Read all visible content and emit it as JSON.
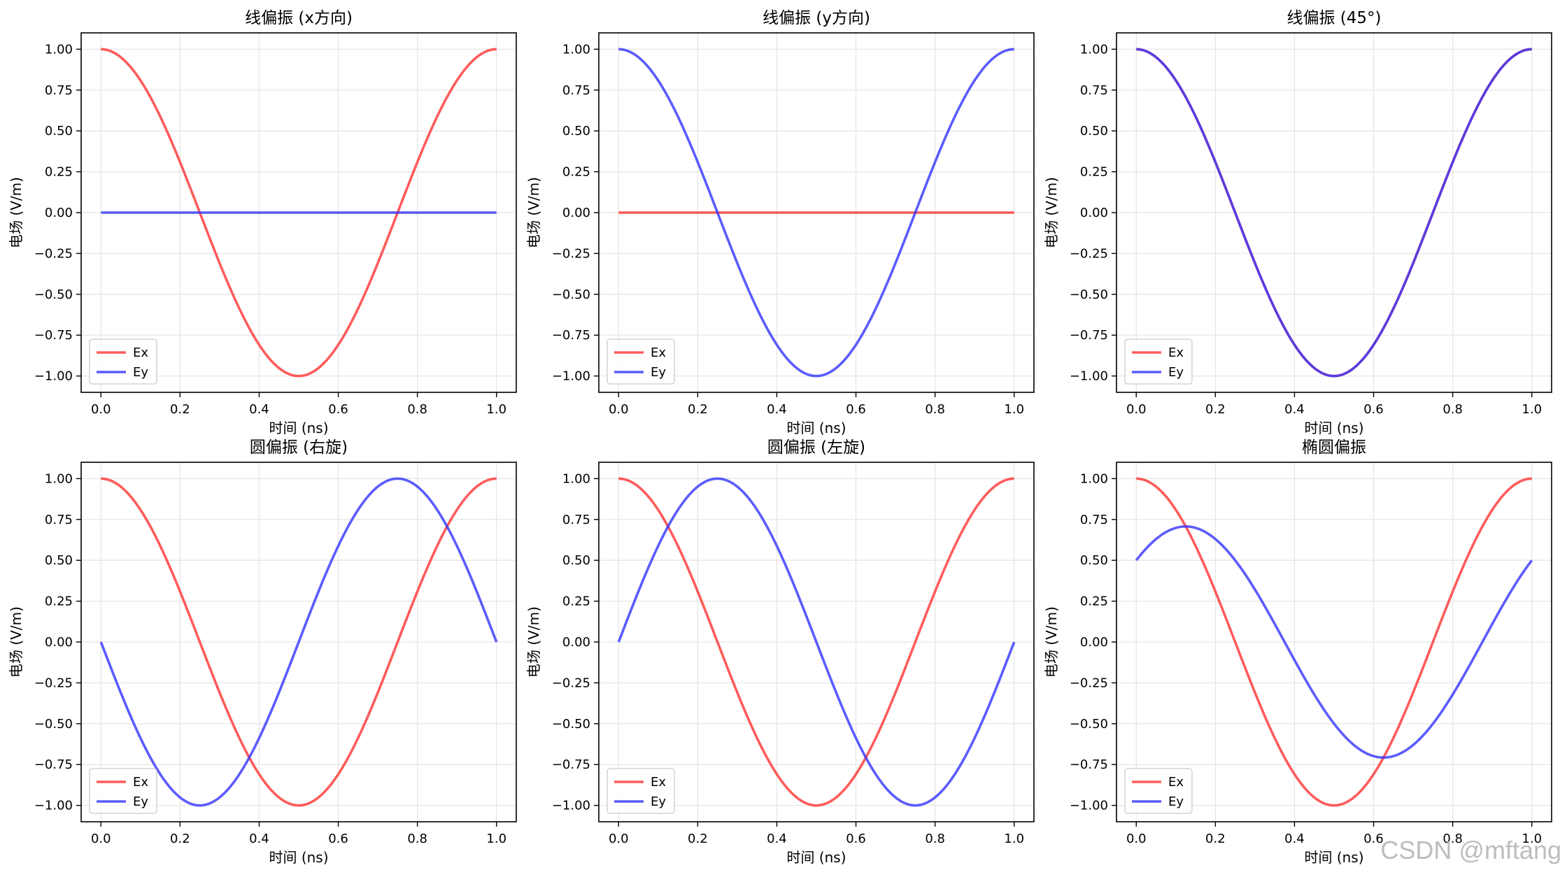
{
  "watermark": "CSDN @mftang",
  "colors": {
    "ex": "#ff3333",
    "ey": "#3333ff"
  },
  "chart_data": [
    {
      "type": "line",
      "title": "线偏振 (x方向)",
      "xlabel": "时间 (ns)",
      "ylabel": "电场 (V/m)",
      "xlim": [
        -0.05,
        1.05
      ],
      "ylim": [
        -1.1,
        1.1
      ],
      "xticks": [
        "0.0",
        "0.2",
        "0.4",
        "0.6",
        "0.8",
        "1.0"
      ],
      "yticks": [
        "1.00",
        "0.75",
        "0.50",
        "0.25",
        "0.00",
        "−0.25",
        "−0.50",
        "−0.75",
        "−1.00"
      ],
      "grid": true,
      "legend": "lower-left",
      "series": [
        {
          "name": "Ex",
          "color": "#ff3333",
          "amplitude": 1.0,
          "phase_deg": 0,
          "x_range": [
            0,
            1
          ],
          "period_ns": 1
        },
        {
          "name": "Ey",
          "color": "#3333ff",
          "amplitude": 0.0,
          "phase_deg": 0,
          "x_range": [
            0,
            1
          ],
          "period_ns": 1
        }
      ]
    },
    {
      "type": "line",
      "title": "线偏振 (y方向)",
      "xlabel": "时间 (ns)",
      "ylabel": "电场 (V/m)",
      "xlim": [
        -0.05,
        1.05
      ],
      "ylim": [
        -1.1,
        1.1
      ],
      "xticks": [
        "0.0",
        "0.2",
        "0.4",
        "0.6",
        "0.8",
        "1.0"
      ],
      "yticks": [
        "1.00",
        "0.75",
        "0.50",
        "0.25",
        "0.00",
        "−0.25",
        "−0.50",
        "−0.75",
        "−1.00"
      ],
      "grid": true,
      "legend": "lower-left",
      "series": [
        {
          "name": "Ex",
          "color": "#ff3333",
          "amplitude": 0.0,
          "phase_deg": 0,
          "x_range": [
            0,
            1
          ],
          "period_ns": 1
        },
        {
          "name": "Ey",
          "color": "#3333ff",
          "amplitude": 1.0,
          "phase_deg": 0,
          "x_range": [
            0,
            1
          ],
          "period_ns": 1
        }
      ]
    },
    {
      "type": "line",
      "title": "线偏振 (45°)",
      "xlabel": "时间 (ns)",
      "ylabel": "电场 (V/m)",
      "xlim": [
        -0.05,
        1.05
      ],
      "ylim": [
        -1.1,
        1.1
      ],
      "xticks": [
        "0.0",
        "0.2",
        "0.4",
        "0.6",
        "0.8",
        "1.0"
      ],
      "yticks": [
        "1.00",
        "0.75",
        "0.50",
        "0.25",
        "0.00",
        "−0.25",
        "−0.50",
        "−0.75",
        "−1.00"
      ],
      "grid": true,
      "legend": "lower-left",
      "series": [
        {
          "name": "Ex",
          "color": "#ff3333",
          "amplitude": 1.0,
          "phase_deg": 0,
          "x_range": [
            0,
            1
          ],
          "period_ns": 1
        },
        {
          "name": "Ey",
          "color": "#3333ff",
          "amplitude": 1.0,
          "phase_deg": 0,
          "x_range": [
            0,
            1
          ],
          "period_ns": 1
        }
      ]
    },
    {
      "type": "line",
      "title": "圆偏振 (右旋)",
      "xlabel": "时间 (ns)",
      "ylabel": "电场 (V/m)",
      "xlim": [
        -0.05,
        1.05
      ],
      "ylim": [
        -1.1,
        1.1
      ],
      "xticks": [
        "0.0",
        "0.2",
        "0.4",
        "0.6",
        "0.8",
        "1.0"
      ],
      "yticks": [
        "1.00",
        "0.75",
        "0.50",
        "0.25",
        "0.00",
        "−0.25",
        "−0.50",
        "−0.75",
        "−1.00"
      ],
      "grid": true,
      "legend": "lower-left",
      "series": [
        {
          "name": "Ex",
          "color": "#ff3333",
          "amplitude": 1.0,
          "phase_deg": 0,
          "x_range": [
            0,
            1
          ],
          "period_ns": 1
        },
        {
          "name": "Ey",
          "color": "#3333ff",
          "amplitude": 1.0,
          "phase_deg": 90,
          "x_range": [
            0,
            1
          ],
          "period_ns": 1
        }
      ]
    },
    {
      "type": "line",
      "title": "圆偏振 (左旋)",
      "xlabel": "时间 (ns)",
      "ylabel": "电场 (V/m)",
      "xlim": [
        -0.05,
        1.05
      ],
      "ylim": [
        -1.1,
        1.1
      ],
      "xticks": [
        "0.0",
        "0.2",
        "0.4",
        "0.6",
        "0.8",
        "1.0"
      ],
      "yticks": [
        "1.00",
        "0.75",
        "0.50",
        "0.25",
        "0.00",
        "−0.25",
        "−0.50",
        "−0.75",
        "−1.00"
      ],
      "grid": true,
      "legend": "lower-left",
      "series": [
        {
          "name": "Ex",
          "color": "#ff3333",
          "amplitude": 1.0,
          "phase_deg": 0,
          "x_range": [
            0,
            1
          ],
          "period_ns": 1
        },
        {
          "name": "Ey",
          "color": "#3333ff",
          "amplitude": 1.0,
          "phase_deg": -90,
          "x_range": [
            0,
            1
          ],
          "period_ns": 1
        }
      ]
    },
    {
      "type": "line",
      "title": "椭圆偏振",
      "xlabel": "时间 (ns)",
      "ylabel": "电场 (V/m)",
      "xlim": [
        -0.05,
        1.05
      ],
      "ylim": [
        -1.1,
        1.1
      ],
      "xticks": [
        "0.0",
        "0.2",
        "0.4",
        "0.6",
        "0.8",
        "1.0"
      ],
      "yticks": [
        "1.00",
        "0.75",
        "0.50",
        "0.25",
        "0.00",
        "−0.25",
        "−0.50",
        "−0.75",
        "−1.00"
      ],
      "grid": true,
      "legend": "lower-left",
      "series": [
        {
          "name": "Ex",
          "color": "#ff3333",
          "amplitude": 1.0,
          "phase_deg": 0,
          "x_range": [
            0,
            1
          ],
          "period_ns": 1
        },
        {
          "name": "Ey",
          "color": "#3333ff",
          "amplitude": 0.7071,
          "phase_deg": -45,
          "x_range": [
            0,
            1
          ],
          "period_ns": 1
        }
      ]
    }
  ]
}
